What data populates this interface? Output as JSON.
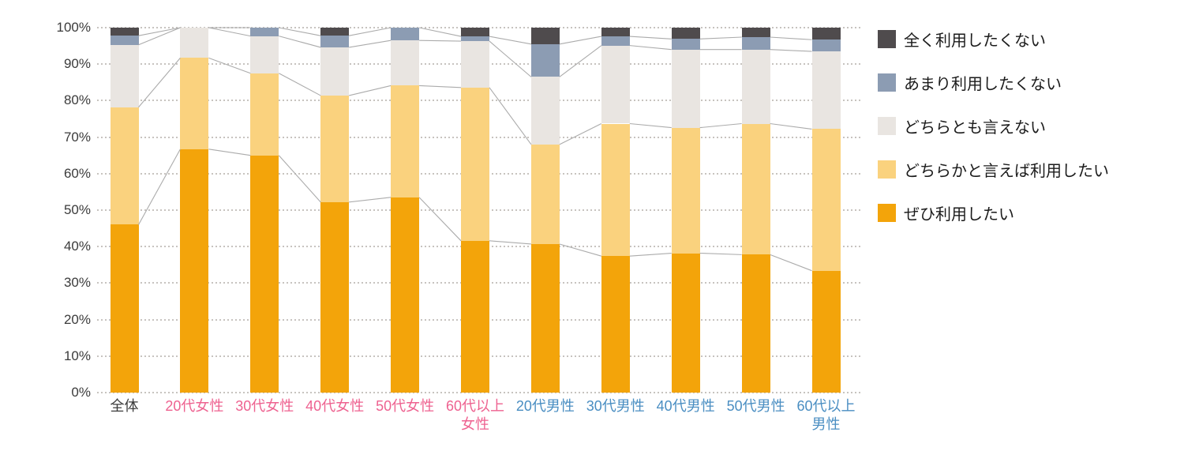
{
  "chart_data": {
    "type": "bar",
    "variant": "100%-stacked-column",
    "title": "",
    "xlabel": "",
    "ylabel": "",
    "unit": "%",
    "ylim": [
      0,
      100
    ],
    "yticks": [
      0,
      10,
      20,
      30,
      40,
      50,
      60,
      70,
      80,
      90,
      100
    ],
    "ytick_suffix": "%",
    "grid": "horizontal-dotted",
    "legend_position": "right",
    "legend_order": "reversed",
    "connector_lines": true,
    "categories": [
      {
        "lines": [
          "全体"
        ],
        "group": "all"
      },
      {
        "lines": [
          "20代女性"
        ],
        "group": "female"
      },
      {
        "lines": [
          "30代女性"
        ],
        "group": "female"
      },
      {
        "lines": [
          "40代女性"
        ],
        "group": "female"
      },
      {
        "lines": [
          "50代女性"
        ],
        "group": "female"
      },
      {
        "lines": [
          "60代以上",
          "女性"
        ],
        "group": "female"
      },
      {
        "lines": [
          "20代男性"
        ],
        "group": "male"
      },
      {
        "lines": [
          "30代男性"
        ],
        "group": "male"
      },
      {
        "lines": [
          "40代男性"
        ],
        "group": "male"
      },
      {
        "lines": [
          "50代男性"
        ],
        "group": "male"
      },
      {
        "lines": [
          "60代以上",
          "男性"
        ],
        "group": "male"
      }
    ],
    "group_colors": {
      "all": "#3b3b3b",
      "female": "#ee6290",
      "male": "#4a8ec2"
    },
    "series": [
      {
        "name": "ぜひ利用したい",
        "color": "#f3a40a",
        "values": [
          46.0,
          66.7,
          65.0,
          52.2,
          53.5,
          41.6,
          40.7,
          37.4,
          38.2,
          37.8,
          33.4
        ]
      },
      {
        "name": "どちらかと言えば利用したい",
        "color": "#fad27e",
        "values": [
          32.2,
          25.0,
          22.5,
          29.2,
          30.6,
          42.0,
          27.3,
          36.3,
          34.4,
          35.9,
          38.8
        ]
      },
      {
        "name": "どちらとも言えない",
        "color": "#e9e5e1",
        "values": [
          17.1,
          8.3,
          10.2,
          13.2,
          12.4,
          12.7,
          18.5,
          21.4,
          21.4,
          20.3,
          21.3
        ]
      },
      {
        "name": "あまり利用したくない",
        "color": "#8c9cb3",
        "values": [
          2.5,
          0.0,
          2.3,
          3.2,
          3.5,
          1.3,
          9.0,
          2.5,
          2.9,
          3.4,
          3.2
        ]
      },
      {
        "name": "全く利用したくない",
        "color": "#4f4b4d",
        "values": [
          2.2,
          0.0,
          0.0,
          2.2,
          0.0,
          2.4,
          4.5,
          2.4,
          3.1,
          2.6,
          3.3
        ]
      }
    ],
    "colors": {
      "gridline": "#c7c3bf",
      "connector_line": "#ababab",
      "ytick_text": "#3b3b3b",
      "legend_text": "#1b1b1b",
      "background": "#ffffff"
    }
  }
}
